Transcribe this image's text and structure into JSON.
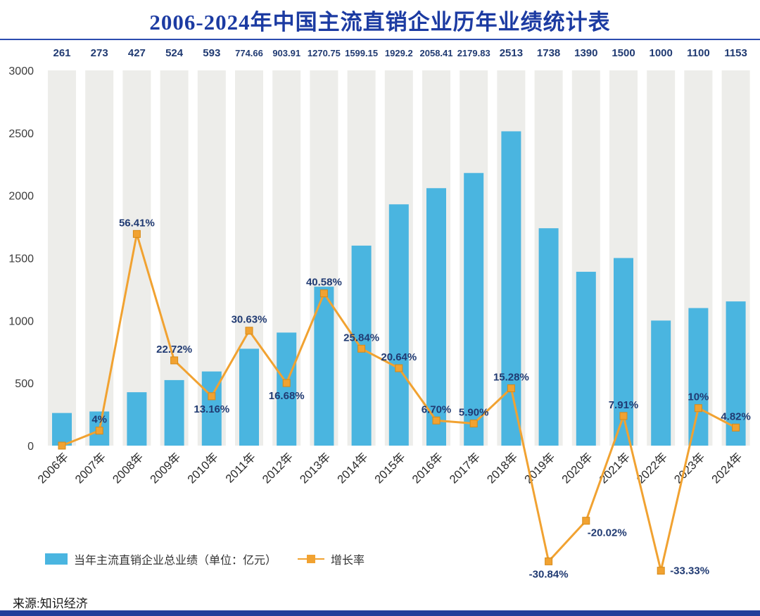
{
  "title": "2006-2024年中国主流直销企业历年业绩统计表",
  "source": "来源:知识经济",
  "legend": {
    "bars": "当年主流直销企业总业绩（单位：亿元）",
    "line": "增长率"
  },
  "colors": {
    "title": "#1c3ba2",
    "navy": "#203a72",
    "bar": "#4ab5e0",
    "band": "#ededea",
    "line": "#f1a231",
    "line_edge": "#d78a17",
    "axis_text": "#3c3c3c",
    "bottom_bar": "#203f9a"
  },
  "chart_data": {
    "type": "bar+line",
    "title": "2006-2024年中国主流直销企业历年业绩统计表",
    "categories": [
      "2006年",
      "2007年",
      "2008年",
      "2009年",
      "2010年",
      "2011年",
      "2012年",
      "2013年",
      "2014年",
      "2015年",
      "2016年",
      "2017年",
      "2018年",
      "2019年",
      "2020年",
      "2021年",
      "2022年",
      "2023年",
      "2024年"
    ],
    "bar": {
      "name": "当年主流直销企业总业绩（单位：亿元）",
      "values": [
        261,
        273,
        427,
        524,
        593,
        774.66,
        903.91,
        1270.75,
        1599.15,
        1929.2,
        2058.41,
        2179.83,
        2513,
        1738,
        1390,
        1500,
        1000,
        1100,
        1153
      ],
      "labels": [
        "261",
        "273",
        "427",
        "524",
        "593",
        "774.66",
        "903.91",
        "1270.75",
        "1599.15",
        "1929.2",
        "2058.41",
        "2179.83",
        "2513",
        "1738",
        "1390",
        "1500",
        "1000",
        "1100",
        "1153"
      ]
    },
    "line": {
      "name": "增长率",
      "unit": "%",
      "values": [
        0,
        4,
        56.41,
        22.72,
        13.16,
        30.63,
        16.68,
        40.58,
        25.84,
        20.64,
        6.7,
        5.9,
        15.28,
        -30.84,
        -20.02,
        7.91,
        -33.33,
        10,
        4.82
      ],
      "labels": [
        "",
        "4%",
        "56.41%",
        "22.72%",
        "13.16%",
        "30.63%",
        "16.68%",
        "40.58%",
        "25.84%",
        "20.64%",
        "6.70%",
        "5.90%",
        "15.28%",
        "-30.84%",
        "-20.02%",
        "7.91%",
        "-33.33%",
        "10%",
        "4.82%"
      ],
      "label_positions": [
        "none",
        "above",
        "above",
        "above",
        "below",
        "above",
        "below",
        "above",
        "above",
        "above",
        "above",
        "above",
        "above",
        "below",
        "below-right",
        "above",
        "right",
        "above",
        "above"
      ],
      "axis_scale": 30
    },
    "ylim": [
      0,
      3000
    ],
    "yticks": [
      0,
      500,
      1000,
      1500,
      2000,
      2500,
      3000
    ],
    "grid": "column-bands",
    "legend_position": "bottom-left"
  }
}
